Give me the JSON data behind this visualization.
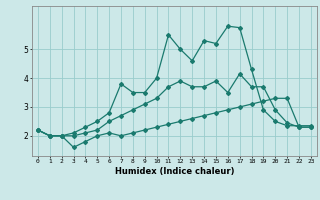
{
  "xlabel": "Humidex (Indice chaleur)",
  "x": [
    0,
    1,
    2,
    3,
    4,
    5,
    6,
    7,
    8,
    9,
    10,
    11,
    12,
    13,
    14,
    15,
    16,
    17,
    18,
    19,
    20,
    21,
    22,
    23
  ],
  "line1": [
    2.2,
    2.0,
    2.0,
    1.6,
    1.8,
    2.0,
    2.1,
    2.0,
    2.1,
    2.2,
    2.3,
    2.4,
    2.5,
    2.6,
    2.7,
    2.8,
    2.9,
    3.0,
    3.1,
    3.2,
    3.3,
    3.3,
    2.3,
    2.3
  ],
  "line2": [
    2.2,
    2.0,
    2.0,
    2.0,
    2.1,
    2.2,
    2.5,
    2.7,
    2.9,
    3.1,
    3.3,
    3.7,
    3.9,
    3.7,
    3.7,
    3.9,
    3.5,
    4.15,
    3.7,
    3.7,
    2.9,
    2.45,
    2.3,
    2.3
  ],
  "line3": [
    2.2,
    2.0,
    2.0,
    2.1,
    2.3,
    2.5,
    2.8,
    3.8,
    3.5,
    3.5,
    4.0,
    5.5,
    5.0,
    4.6,
    5.3,
    5.2,
    5.8,
    5.75,
    4.3,
    2.9,
    2.5,
    2.35,
    2.35,
    2.35
  ],
  "line_color": "#1a7a6e",
  "bg_color": "#cce8e8",
  "grid_color": "#99cccc",
  "ylim": [
    1.3,
    6.5
  ],
  "xlim": [
    -0.5,
    23.5
  ]
}
